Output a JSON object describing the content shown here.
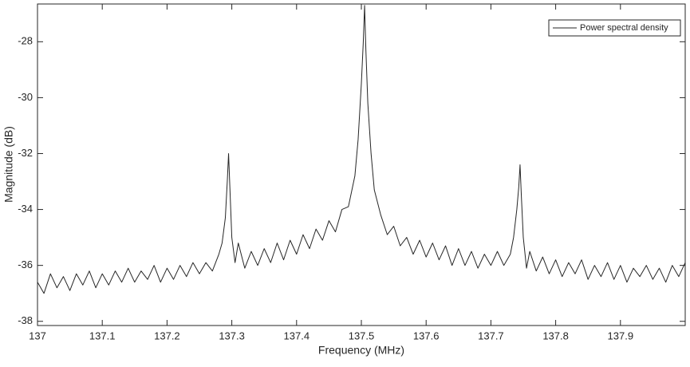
{
  "chart_data": {
    "type": "line",
    "x_label": "Frequency (MHz)",
    "y_label": "Magnitude (dB)",
    "xlim": [
      137,
      138
    ],
    "ylim": [
      -38.15,
      -26.65
    ],
    "xticks": [
      137,
      137.1,
      137.2,
      137.3,
      137.4,
      137.5,
      137.6,
      137.7,
      137.8,
      137.9
    ],
    "yticks": [
      -38,
      -36,
      -34,
      -32,
      -30,
      -28
    ],
    "grid": false,
    "legend": "upper right",
    "x": [
      137.0,
      137.01,
      137.02,
      137.03,
      137.04,
      137.05,
      137.06,
      137.07,
      137.08,
      137.09,
      137.1,
      137.11,
      137.12,
      137.13,
      137.14,
      137.15,
      137.16,
      137.17,
      137.18,
      137.19,
      137.2,
      137.21,
      137.22,
      137.23,
      137.24,
      137.25,
      137.26,
      137.27,
      137.28,
      137.285,
      137.29,
      137.293,
      137.295,
      137.297,
      137.3,
      137.305,
      137.31,
      137.32,
      137.33,
      137.34,
      137.35,
      137.36,
      137.37,
      137.38,
      137.39,
      137.4,
      137.41,
      137.42,
      137.43,
      137.44,
      137.45,
      137.46,
      137.47,
      137.48,
      137.49,
      137.495,
      137.5,
      137.503,
      137.505,
      137.507,
      137.51,
      137.515,
      137.52,
      137.53,
      137.54,
      137.55,
      137.56,
      137.57,
      137.58,
      137.59,
      137.6,
      137.61,
      137.62,
      137.63,
      137.64,
      137.65,
      137.66,
      137.67,
      137.68,
      137.69,
      137.7,
      137.71,
      137.72,
      137.73,
      137.735,
      137.74,
      137.743,
      137.745,
      137.747,
      137.75,
      137.755,
      137.76,
      137.77,
      137.78,
      137.79,
      137.8,
      137.81,
      137.82,
      137.83,
      137.84,
      137.85,
      137.86,
      137.87,
      137.88,
      137.89,
      137.9,
      137.91,
      137.92,
      137.93,
      137.94,
      137.95,
      137.96,
      137.97,
      137.98,
      137.99,
      138.0
    ],
    "series": [
      {
        "name": "Power spectral density",
        "color": "#262626",
        "values": [
          -36.6,
          -37.0,
          -36.3,
          -36.8,
          -36.4,
          -36.9,
          -36.3,
          -36.7,
          -36.2,
          -36.8,
          -36.3,
          -36.7,
          -36.2,
          -36.6,
          -36.1,
          -36.6,
          -36.2,
          -36.5,
          -36.0,
          -36.6,
          -36.1,
          -36.5,
          -36.0,
          -36.4,
          -35.9,
          -36.3,
          -35.9,
          -36.2,
          -35.6,
          -35.2,
          -34.3,
          -33.0,
          -32.0,
          -33.2,
          -35.0,
          -35.9,
          -35.2,
          -36.1,
          -35.5,
          -36.0,
          -35.4,
          -35.9,
          -35.2,
          -35.8,
          -35.1,
          -35.6,
          -34.9,
          -35.4,
          -34.7,
          -35.1,
          -34.4,
          -34.8,
          -34.0,
          -33.9,
          -32.8,
          -31.5,
          -29.5,
          -28.0,
          -26.7,
          -28.3,
          -30.2,
          -32.0,
          -33.3,
          -34.2,
          -34.9,
          -34.6,
          -35.3,
          -35.0,
          -35.6,
          -35.1,
          -35.7,
          -35.2,
          -35.8,
          -35.3,
          -36.0,
          -35.4,
          -36.0,
          -35.5,
          -36.1,
          -35.6,
          -36.0,
          -35.5,
          -36.0,
          -35.6,
          -35.0,
          -34.0,
          -33.2,
          -32.4,
          -33.5,
          -35.0,
          -36.1,
          -35.5,
          -36.2,
          -35.7,
          -36.3,
          -35.8,
          -36.4,
          -35.9,
          -36.3,
          -35.8,
          -36.5,
          -36.0,
          -36.4,
          -35.9,
          -36.5,
          -36.0,
          -36.6,
          -36.1,
          -36.4,
          -36.0,
          -36.5,
          -36.1,
          -36.6,
          -36.0,
          -36.4,
          -35.9
        ]
      }
    ]
  }
}
